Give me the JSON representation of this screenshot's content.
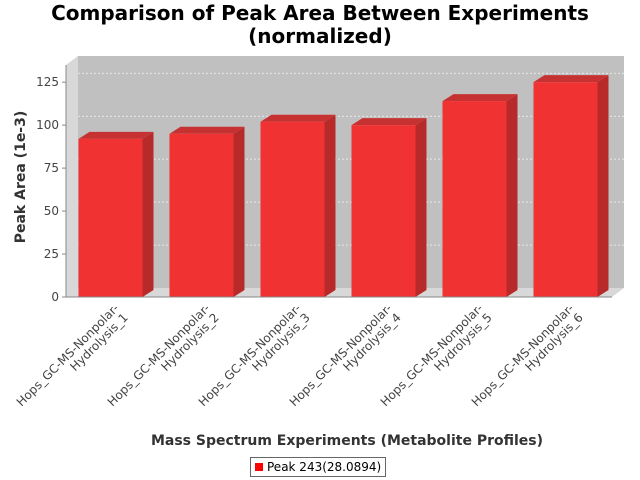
{
  "chart_data": {
    "type": "bar",
    "title_lines": [
      "Comparison of Peak Area Between Experiments",
      "(normalized)"
    ],
    "xlabel": "Mass Spectrum Experiments (Metabolite Profiles)",
    "ylabel": "Peak Area (1e-3)",
    "ylim": [
      0,
      135
    ],
    "yticks": [
      0,
      25,
      50,
      75,
      100,
      125
    ],
    "grid": true,
    "legend_position": "bottom",
    "categories": [
      [
        "Hops_GC-MS-Nonpolar-",
        "Hydrolysis_1"
      ],
      [
        "Hops_GC-MS-Nonpolar-",
        "Hydrolysis_2"
      ],
      [
        "Hops_GC-MS-Nonpolar-",
        "Hydrolysis_3"
      ],
      [
        "Hops_GC-MS-Nonpolar-",
        "Hydrolysis_4"
      ],
      [
        "Hops_GC-MS-Nonpolar-",
        "Hydrolysis_5"
      ],
      [
        "Hops_GC-MS-Nonpolar-",
        "Hydrolysis_6"
      ]
    ],
    "series": [
      {
        "name": "Peak 243(28.0894)",
        "color": "#ff0000",
        "values": [
          92,
          95,
          102,
          100,
          114,
          125
        ]
      }
    ]
  }
}
